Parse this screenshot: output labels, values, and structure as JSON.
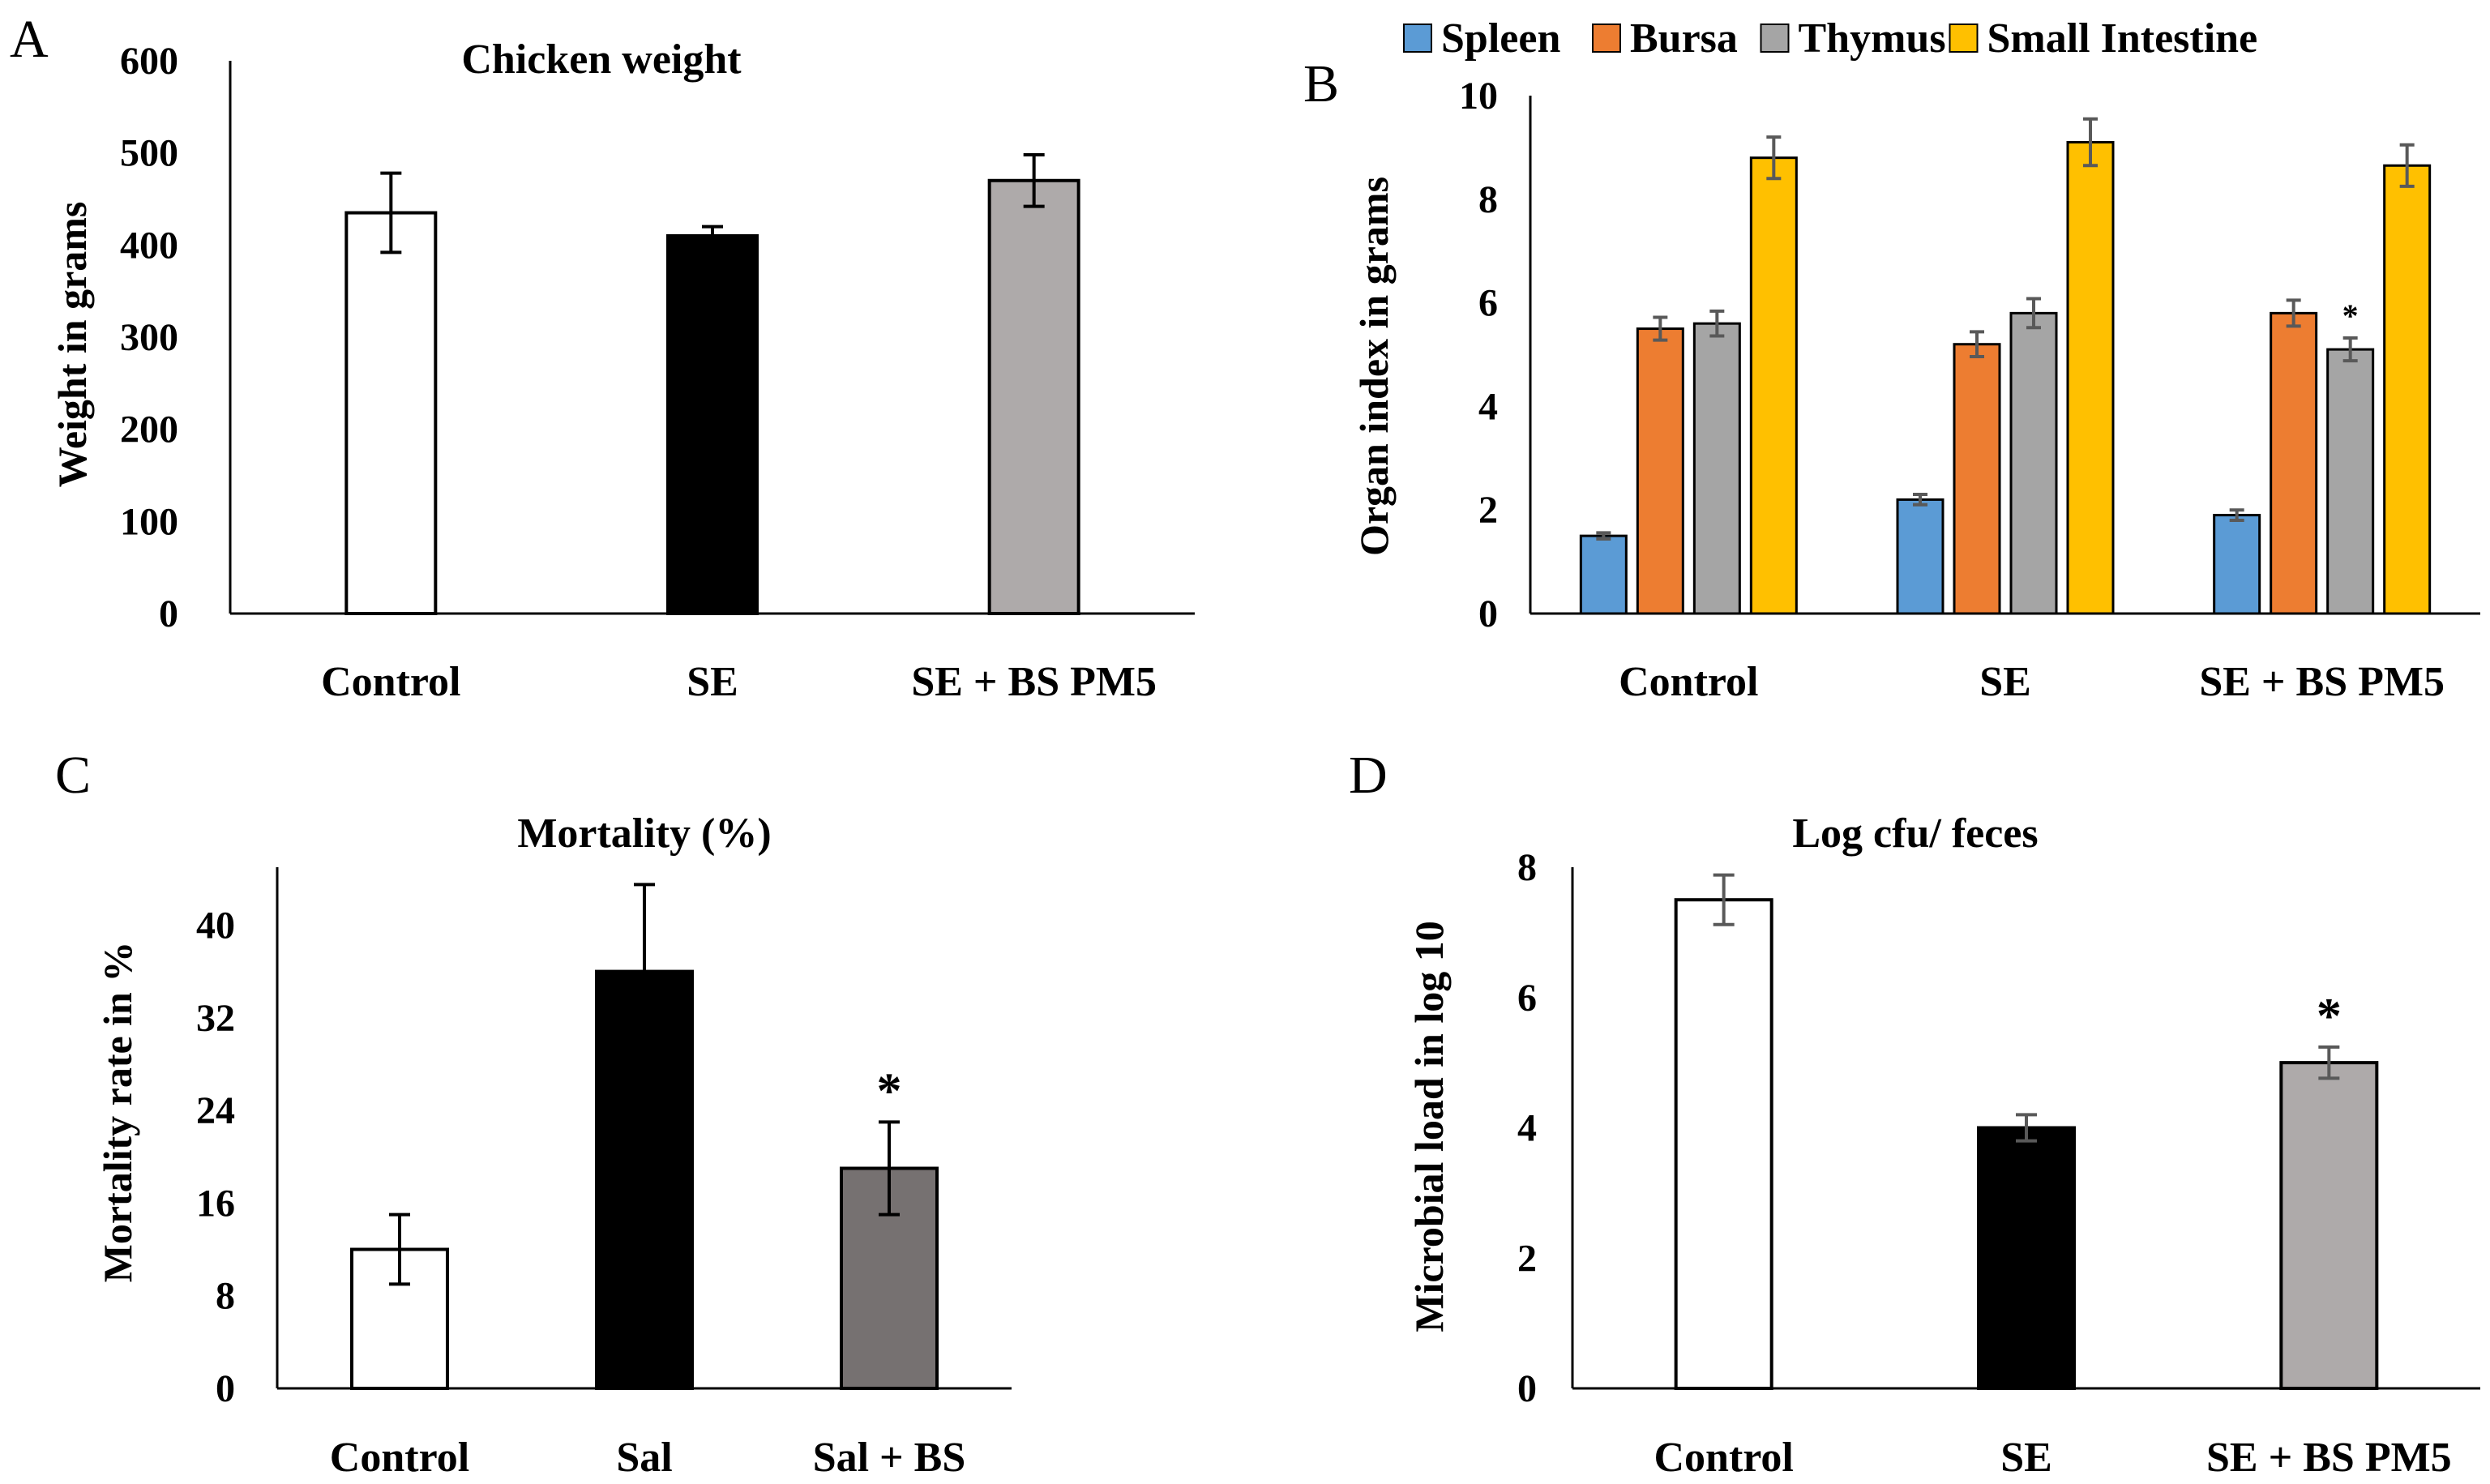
{
  "chart_data": [
    {
      "panel": "A",
      "type": "bar",
      "title": "Chicken weight",
      "xlabel": "",
      "ylabel": "Weight in grams",
      "ylim": [
        0,
        600
      ],
      "yticks": [
        0,
        100,
        200,
        300,
        400,
        500,
        600
      ],
      "categories": [
        "Control",
        "SE",
        "SE + BS PM5"
      ],
      "values": [
        435,
        410,
        470
      ],
      "errors": [
        43,
        10,
        28
      ],
      "colors": [
        "#ffffff",
        "#000000",
        "#aeaaaa"
      ],
      "significance": [
        "",
        "",
        ""
      ],
      "error_color": "#000000"
    },
    {
      "panel": "B",
      "type": "bar",
      "title": "",
      "xlabel": "",
      "ylabel": "Organ index  in grams",
      "ylim": [
        0,
        10
      ],
      "yticks": [
        0,
        2,
        4,
        6,
        8,
        10
      ],
      "categories": [
        "Control",
        "SE",
        "SE + BS PM5"
      ],
      "legend_position": "top",
      "series": [
        {
          "name": "Spleen",
          "color": "#5b9bd5",
          "values": [
            1.5,
            2.2,
            1.9
          ],
          "errors": [
            0.06,
            0.1,
            0.1
          ]
        },
        {
          "name": "Bursa",
          "color": "#ed7d31",
          "values": [
            5.5,
            5.2,
            5.8
          ],
          "errors": [
            0.22,
            0.24,
            0.25
          ]
        },
        {
          "name": "Thymus",
          "color": "#a5a5a5",
          "values": [
            5.6,
            5.8,
            5.1
          ],
          "errors": [
            0.24,
            0.28,
            0.22
          ]
        },
        {
          "name": "Small Intestine",
          "color": "#ffc000",
          "values": [
            8.8,
            9.1,
            8.65
          ],
          "errors": [
            0.4,
            0.45,
            0.4
          ]
        }
      ],
      "significance": [
        {
          "category": "SE + BS PM5",
          "series": "Thymus",
          "mark": "*"
        }
      ],
      "error_color": "#595959"
    },
    {
      "panel": "C",
      "type": "bar",
      "title": "Mortality (%)",
      "xlabel": "",
      "ylabel": "Mortality  rate in %",
      "ylim": [
        0,
        45
      ],
      "yticks": [
        0,
        8,
        16,
        24,
        32,
        40
      ],
      "categories": [
        "Control",
        "Sal",
        "Sal + BS"
      ],
      "values": [
        12,
        36,
        19
      ],
      "errors": [
        3,
        7.5,
        4
      ],
      "colors": [
        "#ffffff",
        "#000000",
        "#767171"
      ],
      "significance": [
        "",
        "",
        "*"
      ],
      "error_color": "#000000"
    },
    {
      "panel": "D",
      "type": "bar",
      "title": "Log cfu/ feces",
      "xlabel": "",
      "ylabel": "Microbial  load in log 10",
      "ylim": [
        0,
        8
      ],
      "yticks": [
        0,
        2,
        4,
        6,
        8
      ],
      "categories": [
        "Control",
        "SE",
        "SE + BS PM5"
      ],
      "values": [
        7.5,
        4.0,
        5.0
      ],
      "errors": [
        0.38,
        0.2,
        0.24
      ],
      "colors": [
        "#ffffff",
        "#000000",
        "#aeaaaa"
      ],
      "significance": [
        "",
        "",
        "*"
      ],
      "error_color": "#595959"
    }
  ]
}
